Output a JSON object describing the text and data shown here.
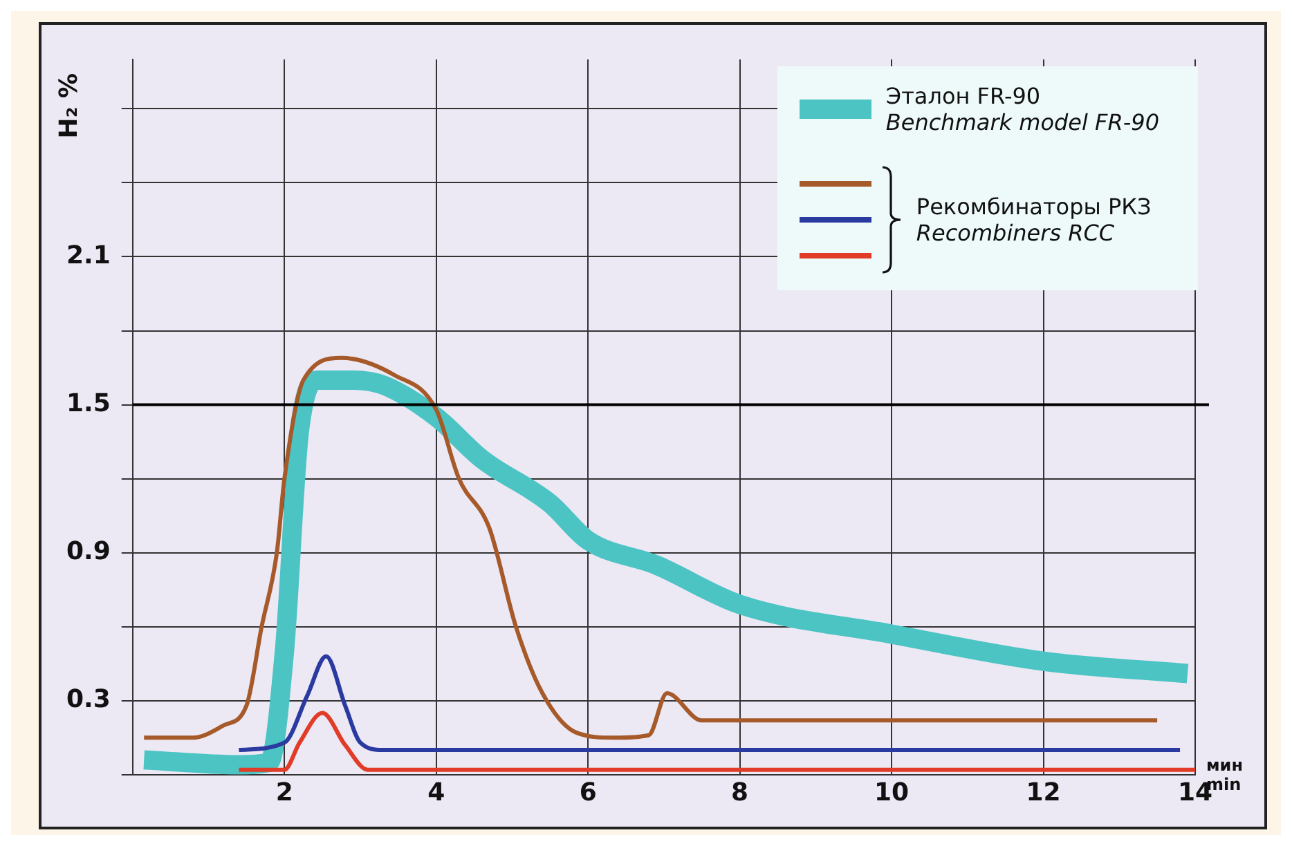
{
  "chart_data": {
    "type": "line",
    "ylabel": "H₂ %",
    "xlabel": "мин\nmin",
    "xlim": [
      0,
      14
    ],
    "xticks": [
      {
        "value": 0,
        "label": null
      },
      2,
      4,
      6,
      8,
      10,
      12,
      14
    ],
    "ylim": [
      0,
      2.9
    ],
    "yticks": [
      {
        "value": 0,
        "label": null
      },
      0.3,
      {
        "value": 0.6,
        "label": null
      },
      0.9,
      {
        "value": 1.2,
        "label": null
      },
      1.5,
      {
        "value": 1.8,
        "label": null
      },
      2.1,
      {
        "value": 2.4,
        "label": null
      },
      {
        "value": 2.7,
        "label": null
      }
    ],
    "grid": true,
    "legend": "top right",
    "marker": "none",
    "line_style": "solid",
    "ref_lines": [
      {
        "axis": "y",
        "value": 1.5,
        "color": "#000000"
      }
    ],
    "series": [
      {
        "name": "Эталон FR-90\nBenchmark model FR-90",
        "color": "#4cc4c4",
        "x": [
          0.15,
          1.4,
          1.8,
          2.0,
          2.2,
          2.45,
          2.9,
          3.3,
          4.0,
          4.6,
          5.5,
          6.0,
          6.9,
          8.0,
          10.0,
          12.0,
          13.9
        ],
        "values": [
          0.06,
          0.04,
          0.05,
          0.5,
          1.4,
          1.6,
          1.6,
          1.58,
          1.45,
          1.28,
          1.1,
          0.95,
          0.85,
          0.69,
          0.57,
          0.46,
          0.41
        ]
      },
      {
        "color": "#a65a2a",
        "x": [
          0.15,
          0.8,
          1.2,
          1.5,
          1.7,
          1.9,
          2.0,
          2.25,
          2.75,
          3.45,
          4.0,
          4.3,
          4.7,
          5.05,
          5.4,
          5.85,
          6.35,
          6.8,
          7.04,
          7.5,
          8.0,
          13.5
        ],
        "values": [
          0.15,
          0.15,
          0.2,
          0.28,
          0.6,
          0.9,
          1.2,
          1.6,
          1.69,
          1.62,
          1.48,
          1.2,
          1.0,
          0.6,
          0.33,
          0.17,
          0.15,
          0.16,
          0.33,
          0.22,
          0.22,
          0.22
        ]
      },
      {
        "name": "Рекомбинаторы РКЗ\nRecombiners RCC",
        "color": "#2a3aa0",
        "x": [
          1.4,
          2.0,
          2.3,
          2.55,
          2.8,
          3.0,
          3.3,
          13.8
        ],
        "values": [
          0.1,
          0.13,
          0.32,
          0.48,
          0.28,
          0.13,
          0.1,
          0.1
        ]
      },
      {
        "color": "#e03c28",
        "x": [
          1.4,
          2.0,
          2.2,
          2.5,
          2.8,
          3.1,
          14.0
        ],
        "values": [
          0.02,
          0.02,
          0.13,
          0.25,
          0.12,
          0.02,
          0.02
        ]
      }
    ]
  }
}
